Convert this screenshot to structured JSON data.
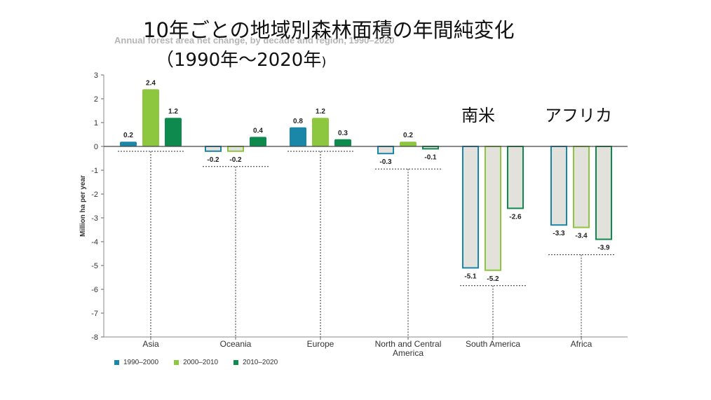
{
  "header": {
    "title_line1": "10年ごとの地域別森林面積の年間純変化",
    "title_line2": "（1990年～2020年",
    "title_line2_close": ")",
    "original_title": "Annual forest area net change, by decade and region, 1990–2020"
  },
  "annotations": {
    "south_america_jp": "南米",
    "africa_jp": "アフリカ"
  },
  "colors": {
    "series1": "#1a86a8",
    "series2": "#8dc63f",
    "series3": "#0e8a4f",
    "negative_fill": "#e2e1dc",
    "zero_line": "#444444",
    "grid": "#dddddd"
  },
  "chart_data": {
    "type": "bar",
    "title": "Annual forest area net change, by decade and region, 1990–2020",
    "ylabel": "Million ha per year",
    "xlabel": "",
    "ylim": [
      -8,
      3
    ],
    "yticks": [
      3,
      2,
      1,
      0,
      -1,
      -2,
      -3,
      -4,
      -5,
      -6,
      -7,
      -8
    ],
    "categories": [
      "Asia",
      "Oceania",
      "Europe",
      "North and Central America",
      "South America",
      "Africa"
    ],
    "category_labels": [
      [
        "Asia"
      ],
      [
        "Oceania"
      ],
      [
        "Europe"
      ],
      [
        "North and Central",
        "America"
      ],
      [
        "South America"
      ],
      [
        "Africa"
      ]
    ],
    "series": [
      {
        "name": "1990–2000",
        "values": [
          0.2,
          -0.2,
          0.8,
          -0.3,
          -5.1,
          -3.3
        ],
        "labels": [
          "0.2",
          "-0.2",
          "0.8",
          "-0.3",
          "-5.1",
          "-3.3"
        ]
      },
      {
        "name": "2000–2010",
        "values": [
          2.4,
          -0.2,
          1.2,
          0.2,
          -5.2,
          -3.4
        ],
        "labels": [
          "2.4",
          "-0.2",
          "1.2",
          "0.2",
          "-5.2",
          "-3.4"
        ]
      },
      {
        "name": "2010–2020",
        "values": [
          1.2,
          0.4,
          0.3,
          -0.1,
          -2.6,
          -3.9
        ],
        "labels": [
          "1.2",
          "0.4",
          "0.3",
          "-0.1",
          "-2.6",
          "-3.9"
        ]
      }
    ],
    "legend_position": "bottom-left",
    "grid": false
  }
}
